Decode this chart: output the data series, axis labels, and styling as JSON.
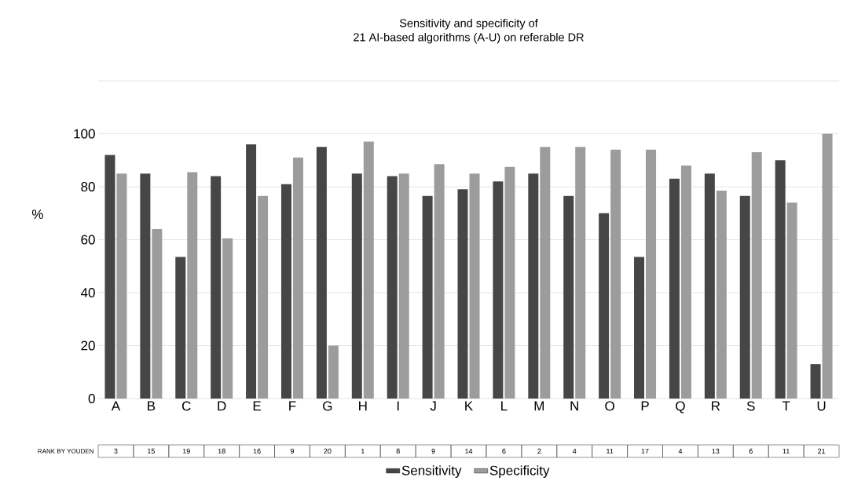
{
  "chart_data": {
    "type": "bar",
    "title": "Sensitivity and specificity of\n21 AI-based algorithms (A-U) on referable DR",
    "ylabel": "%",
    "categories": [
      "A",
      "B",
      "C",
      "D",
      "E",
      "F",
      "G",
      "H",
      "I",
      "J",
      "K",
      "L",
      "M",
      "N",
      "O",
      "P",
      "Q",
      "R",
      "S",
      "T",
      "U"
    ],
    "series": [
      {
        "name": "Sensitivity",
        "color": "#464646",
        "values": [
          92,
          85,
          53.5,
          84,
          96,
          81,
          95,
          85,
          84,
          76.5,
          79,
          82,
          85,
          76.5,
          70,
          53.5,
          83,
          85,
          76.5,
          90,
          13
        ]
      },
      {
        "name": "Specificity",
        "color": "#9c9c9c",
        "values": [
          85,
          64,
          85.5,
          60.5,
          76.5,
          91,
          20,
          97,
          85,
          88.5,
          85,
          87.5,
          95,
          95,
          94,
          94,
          88,
          78.5,
          93,
          74,
          100
        ]
      }
    ],
    "ylim": [
      0,
      120
    ],
    "yticks": [
      0,
      20,
      40,
      60,
      80,
      100,
      {
        "value": 120,
        "label": null
      }
    ],
    "grid": "y",
    "legend": "bottom",
    "annotations": [
      "RANK BY YOUDEN",
      "3",
      "15",
      "19",
      "18",
      "16",
      "9",
      "20",
      "1",
      "8",
      "9",
      "14",
      "6",
      "2",
      "4",
      "11",
      "17",
      "4",
      "13",
      "6",
      "11",
      "21"
    ]
  }
}
